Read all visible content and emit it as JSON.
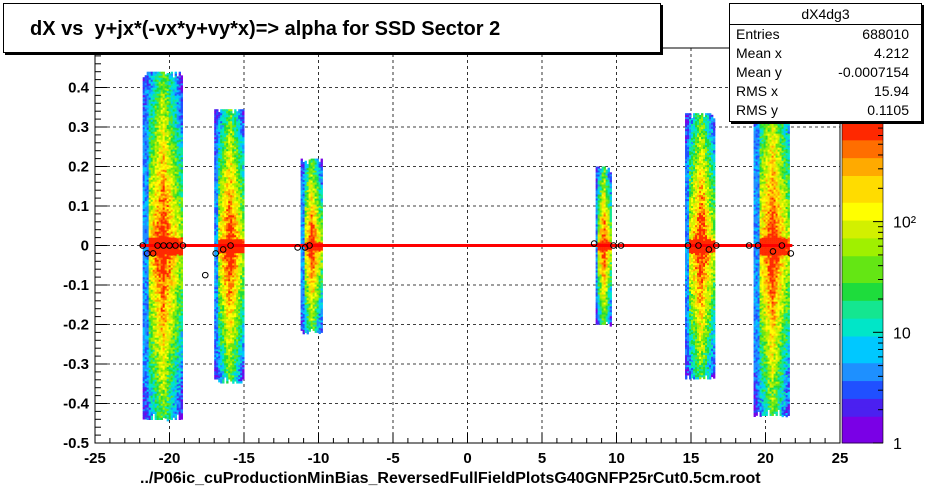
{
  "title": "dX vs  y+jx*(-vx*y+vy*x)=> alpha for SSD Sector 2",
  "stats": {
    "name": "dX4dg3",
    "rows": [
      {
        "label": "Entries",
        "value": "688010"
      },
      {
        "label": "Mean x",
        "value": "4.212"
      },
      {
        "label": "Mean y",
        "value": "-0.0007154"
      },
      {
        "label": "RMS x",
        "value": "15.94"
      },
      {
        "label": "RMS y",
        "value": "0.1105"
      }
    ]
  },
  "footer_filename": "../P06ic_cuProductionMinBias_ReversedFullFieldPlotsG40GNFP25rCut0.5cm.root",
  "colors": {
    "fit_line": "#ff0000",
    "grid": "#000000",
    "palette": [
      "#7a00e6",
      "#4b20f0",
      "#2050ff",
      "#1e90ff",
      "#00c8ff",
      "#00e6c8",
      "#14e690",
      "#1edc3c",
      "#64e614",
      "#a0f000",
      "#d2f000",
      "#ffff00",
      "#ffdc00",
      "#ffaa00",
      "#ff6e00",
      "#ff2800"
    ]
  },
  "chart_data": {
    "type": "heatmap",
    "title": "dX vs  y+jx*(-vx*y+vy*x)=> alpha for SSD Sector 2",
    "xlabel": "../P06ic_cuProductionMinBias_ReversedFullFieldPlotsG40GNFP25rCut0.5cm.root",
    "ylabel": "",
    "xlim": [
      -25,
      25
    ],
    "ylim": [
      -0.5,
      0.5
    ],
    "x_ticks": [
      "-25",
      "-20",
      "-15",
      "-10",
      "-5",
      "0",
      "5",
      "10",
      "15",
      "20",
      "25"
    ],
    "y_ticks": [
      "-0.5",
      "-0.4",
      "-0.3",
      "-0.2",
      "-0.1",
      "0",
      "0.1",
      "0.2",
      "0.3",
      "0.4"
    ],
    "grid": true,
    "z_scale": "log",
    "z_ticks": [
      "1",
      "10",
      "10²"
    ],
    "ladders": [
      {
        "x0": -21.8,
        "x1": -19.2,
        "y_half": 0.44
      },
      {
        "x0": -17.0,
        "x1": -15.0,
        "y_half": 0.345
      },
      {
        "x0": -11.2,
        "x1": -9.8,
        "y_half": 0.22
      },
      {
        "x0": 8.6,
        "x1": 9.6,
        "y_half": 0.2
      },
      {
        "x0": 14.6,
        "x1": 16.6,
        "y_half": 0.335
      },
      {
        "x0": 19.2,
        "x1": 21.6,
        "y_half": 0.43
      }
    ],
    "profile_points": [
      {
        "x": -21.8,
        "y": 0.0
      },
      {
        "x": -21.5,
        "y": -0.02
      },
      {
        "x": -21.1,
        "y": -0.02
      },
      {
        "x": -20.8,
        "y": 0.0
      },
      {
        "x": -20.4,
        "y": 0.0
      },
      {
        "x": -20.0,
        "y": 0.0
      },
      {
        "x": -19.6,
        "y": 0.0
      },
      {
        "x": -19.1,
        "y": 0.0
      },
      {
        "x": -17.6,
        "y": -0.075
      },
      {
        "x": -16.9,
        "y": -0.02
      },
      {
        "x": -16.4,
        "y": -0.01
      },
      {
        "x": -15.9,
        "y": 0.0
      },
      {
        "x": -11.4,
        "y": -0.005
      },
      {
        "x": -10.9,
        "y": -0.005
      },
      {
        "x": -10.6,
        "y": 0.0
      },
      {
        "x": 8.5,
        "y": 0.005
      },
      {
        "x": 9.8,
        "y": 0.0
      },
      {
        "x": 10.3,
        "y": 0.0
      },
      {
        "x": 14.8,
        "y": 0.0
      },
      {
        "x": 15.5,
        "y": 0.0
      },
      {
        "x": 16.2,
        "y": -0.01
      },
      {
        "x": 16.7,
        "y": 0.0
      },
      {
        "x": 18.9,
        "y": 0.0
      },
      {
        "x": 19.5,
        "y": 0.0
      },
      {
        "x": 20.5,
        "y": -0.015
      },
      {
        "x": 21.1,
        "y": 0.0
      },
      {
        "x": 21.7,
        "y": -0.02
      }
    ],
    "fit_line": {
      "x": [
        -22.0,
        21.8
      ],
      "y": [
        0.0,
        0.0
      ]
    }
  }
}
